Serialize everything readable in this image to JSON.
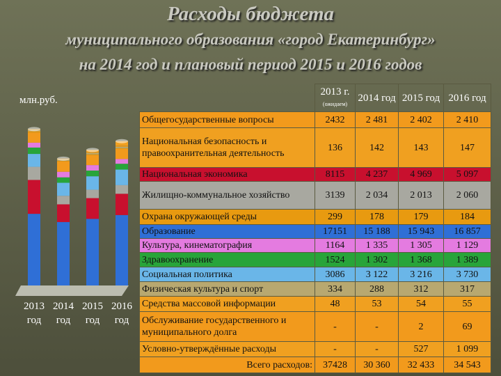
{
  "header": {
    "title_lines": [
      "Расходы бюджета",
      "муниципального образования «город Екатеринбург»",
      "на 2014 год и плановый период 2015 и 2016 годов"
    ],
    "unit": "млн.руб."
  },
  "chart_data": {
    "type": "bar",
    "stacked": true,
    "categories": [
      "2013 год",
      "2014 год",
      "2015 год",
      "2016 год"
    ],
    "series": [
      {
        "name": "Общегосударственные вопросы",
        "color": "#f29a1c",
        "values": [
          2432,
          2481,
          2402,
          2410
        ]
      },
      {
        "name": "Национальная безопасность и правоохранительная деятельность",
        "color": "#f0a020",
        "values": [
          136,
          142,
          143,
          147
        ]
      },
      {
        "name": "Национальная экономика",
        "color": "#c8102e",
        "values": [
          8115,
          4237,
          4969,
          5097
        ]
      },
      {
        "name": "Жилищно-коммунальное хозяйство",
        "color": "#a8a8a0",
        "values": [
          3139,
          2034,
          2013,
          2060
        ]
      },
      {
        "name": "Охрана окружающей среды",
        "color": "#e89a10",
        "values": [
          299,
          178,
          179,
          184
        ]
      },
      {
        "name": "Образование",
        "color": "#2f6fd6",
        "values": [
          17151,
          15188,
          15943,
          16857
        ]
      },
      {
        "name": "Культура, кинематография",
        "color": "#e47be0",
        "values": [
          1164,
          1335,
          1305,
          1129
        ]
      },
      {
        "name": "Здравоохранение",
        "color": "#28a43a",
        "values": [
          1524,
          1302,
          1368,
          1389
        ]
      },
      {
        "name": "Социальная политика",
        "color": "#6ab6e8",
        "values": [
          3086,
          3122,
          3216,
          3730
        ]
      },
      {
        "name": "Физическая культура и спорт",
        "color": "#b8a870",
        "values": [
          334,
          288,
          312,
          317
        ]
      },
      {
        "name": "Средства массовой информации",
        "color": "#f0a020",
        "values": [
          48,
          53,
          54,
          55
        ]
      },
      {
        "name": "Обслуживание государственного и муниципального долга",
        "color": "#f29a1c",
        "values": [
          null,
          null,
          2,
          69
        ]
      },
      {
        "name": "Условно-утверждённые расходы",
        "color": "#f0a020",
        "values": [
          null,
          null,
          527,
          1099
        ]
      }
    ]
  },
  "table": {
    "header": [
      {
        "title": "2013 г.",
        "note": "(ожидаем)"
      },
      {
        "title": "2014 год"
      },
      {
        "title": "2015 год"
      },
      {
        "title": "2016 год"
      }
    ],
    "rows": [
      [
        "Общегосударственные вопросы",
        "2432",
        "2 481",
        "2 402",
        "2 410"
      ],
      [
        "Национальная безопасность и правоохранительная деятельность",
        "136",
        "142",
        "143",
        "147"
      ],
      [
        "Национальная экономика",
        "8115",
        "4 237",
        "4 969",
        "5 097"
      ],
      [
        "Жилищно-коммунальное хозяйство",
        "3139",
        "2 034",
        "2 013",
        "2 060"
      ],
      [
        "Охрана окружающей среды",
        "299",
        "178",
        "179",
        "184"
      ],
      [
        "Образование",
        "17151",
        "15 188",
        "15 943",
        "16 857"
      ],
      [
        "Культура, кинематография",
        "1164",
        "1 335",
        "1 305",
        "1 129"
      ],
      [
        "Здравоохранение",
        "1524",
        "1 302",
        "1 368",
        "1 389"
      ],
      [
        "Социальная политика",
        "3086",
        "3 122",
        "3 216",
        "3 730"
      ],
      [
        "Физическая культура и спорт",
        "334",
        "288",
        "312",
        "317"
      ],
      [
        "Средства массовой информации",
        "48",
        "53",
        "54",
        "55"
      ],
      [
        "Обслуживание государственного и муниципального долга",
        "-",
        "-",
        "2",
        "69"
      ],
      [
        "Условно-утверждённые расходы",
        "-",
        "-",
        "527",
        "1 099"
      ]
    ],
    "total": [
      "Всего расходов:",
      "37428",
      "30 360",
      "32 433",
      "34 543"
    ]
  }
}
